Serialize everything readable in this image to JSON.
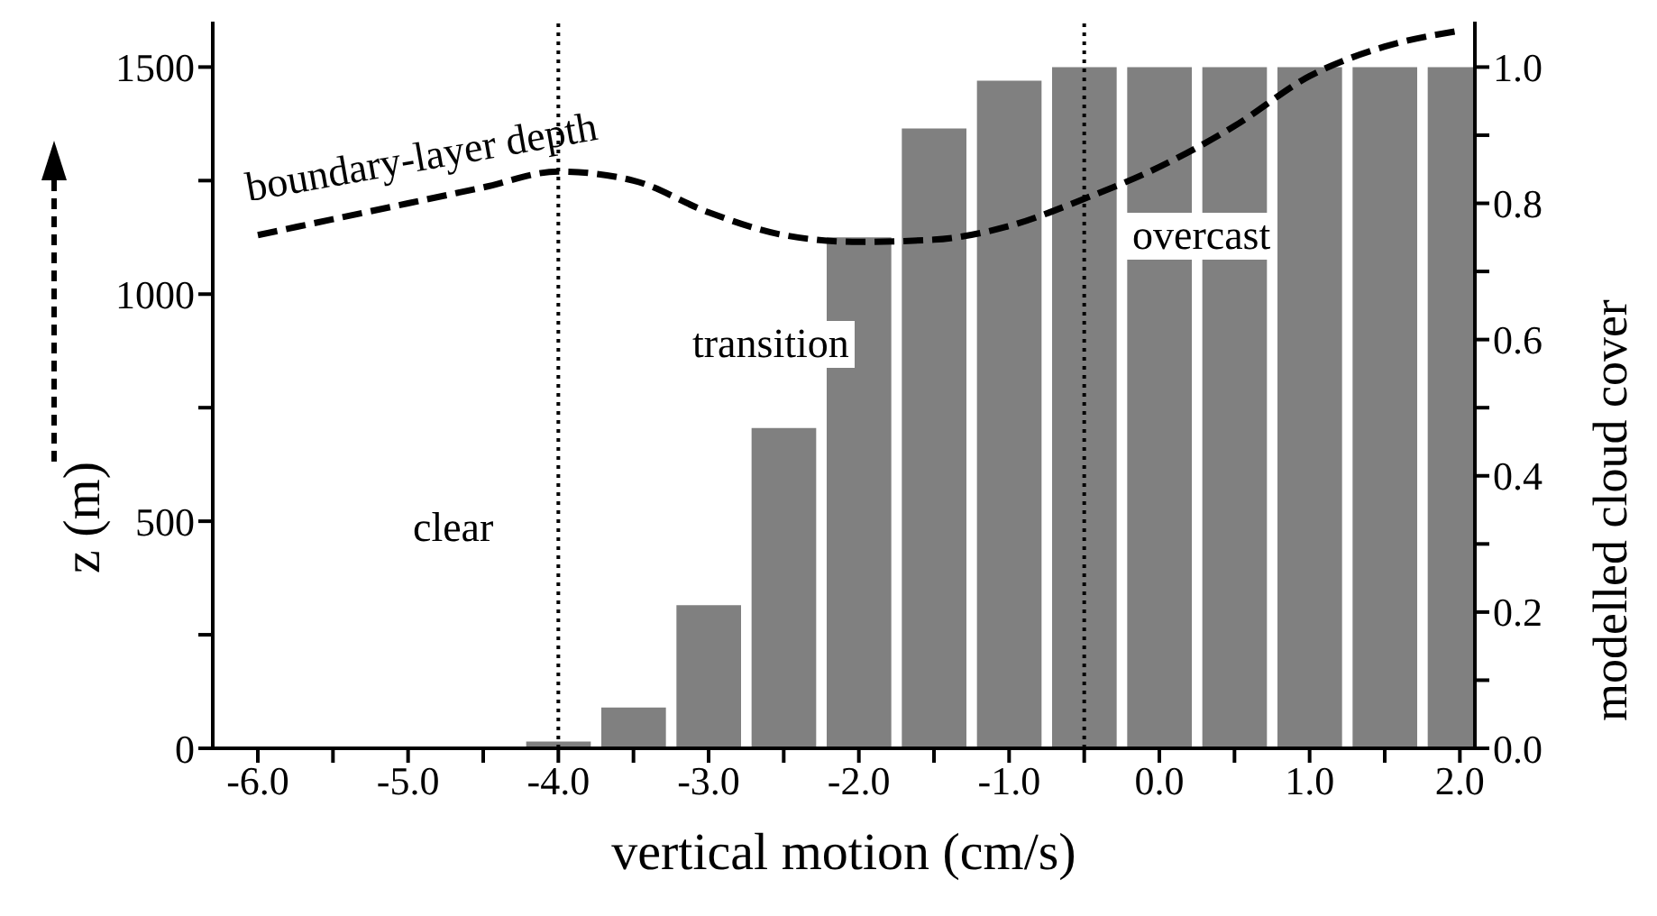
{
  "chart_data": {
    "type": "bar",
    "xlabel": "vertical motion (cm/s)",
    "ylabel": "z (m)",
    "y2label": "modelled cloud cover",
    "series": [
      {
        "axis": "y2",
        "color": "#808080",
        "x": [
          -4.0,
          -3.5,
          -3.0,
          -2.5,
          -2.0,
          -1.5,
          -1.0,
          -0.5,
          0.0,
          0.5,
          1.0,
          1.5,
          2.0
        ],
        "values": [
          0.01,
          0.06,
          0.21,
          0.47,
          0.75,
          0.91,
          0.98,
          1.0,
          1.0,
          1.0,
          1.0,
          1.0,
          1.0
        ]
      },
      {
        "type": "line",
        "axis": "y",
        "color": "#000000",
        "line_style": "dashed",
        "x": [
          -6.0,
          -5.5,
          -5.0,
          -4.5,
          -4.0,
          -3.5,
          -3.0,
          -2.5,
          -2.0,
          -1.5,
          -1.0,
          -0.5,
          0.0,
          0.5,
          1.0,
          1.5,
          2.0
        ],
        "values": [
          1130,
          1165,
          1200,
          1235,
          1270,
          1250,
          1180,
          1130,
          1115,
          1120,
          1150,
          1210,
          1280,
          1370,
          1480,
          1545,
          1580
        ]
      }
    ],
    "xlim": [
      -6.3,
      2.1
    ],
    "xticks": [
      {
        "value": -6,
        "label": "-6.0"
      },
      {
        "value": -5.5,
        "label": null
      },
      {
        "value": -5,
        "label": "-5.0"
      },
      {
        "value": -4.5,
        "label": null
      },
      {
        "value": -4,
        "label": "-4.0"
      },
      {
        "value": -3.5,
        "label": null
      },
      {
        "value": -3,
        "label": "-3.0"
      },
      {
        "value": -2.5,
        "label": null
      },
      {
        "value": -2,
        "label": "-2.0"
      },
      {
        "value": -1.5,
        "label": null
      },
      {
        "value": -1,
        "label": "-1.0"
      },
      {
        "value": -0.5,
        "label": null
      },
      {
        "value": 0,
        "label": "0.0"
      },
      {
        "value": 0.5,
        "label": null
      },
      {
        "value": 1,
        "label": "1.0"
      },
      {
        "value": 1.5,
        "label": null
      },
      {
        "value": 2,
        "label": "2.0"
      }
    ],
    "ylim": [
      0,
      1600
    ],
    "yticks": [
      0,
      {
        "value": 250,
        "label": null
      },
      500,
      {
        "value": 750,
        "label": null
      },
      1000,
      {
        "value": 1250,
        "label": null
      },
      1500
    ],
    "y2lim": [
      0,
      1.0667
    ],
    "y2ticks": [
      {
        "value": 0,
        "label": "0.0"
      },
      {
        "value": 0.1,
        "label": null
      },
      {
        "value": 0.2,
        "label": "0.2"
      },
      {
        "value": 0.3,
        "label": null
      },
      {
        "value": 0.4,
        "label": "0.4"
      },
      {
        "value": 0.5,
        "label": null
      },
      {
        "value": 0.6,
        "label": "0.6"
      },
      {
        "value": 0.7,
        "label": null
      },
      {
        "value": 0.8,
        "label": "0.8"
      },
      {
        "value": 0.9,
        "label": null
      },
      {
        "value": 1.0,
        "label": "1.0"
      }
    ],
    "ref_lines": [
      {
        "axis": "x",
        "value": -4.0,
        "line_style": "dotted",
        "color": "#000000"
      },
      {
        "axis": "x",
        "value": -0.5,
        "line_style": "dotted",
        "color": "#000000"
      }
    ],
    "annotations": [
      "boundary-layer depth",
      "clear",
      "transition",
      "overcast"
    ]
  }
}
